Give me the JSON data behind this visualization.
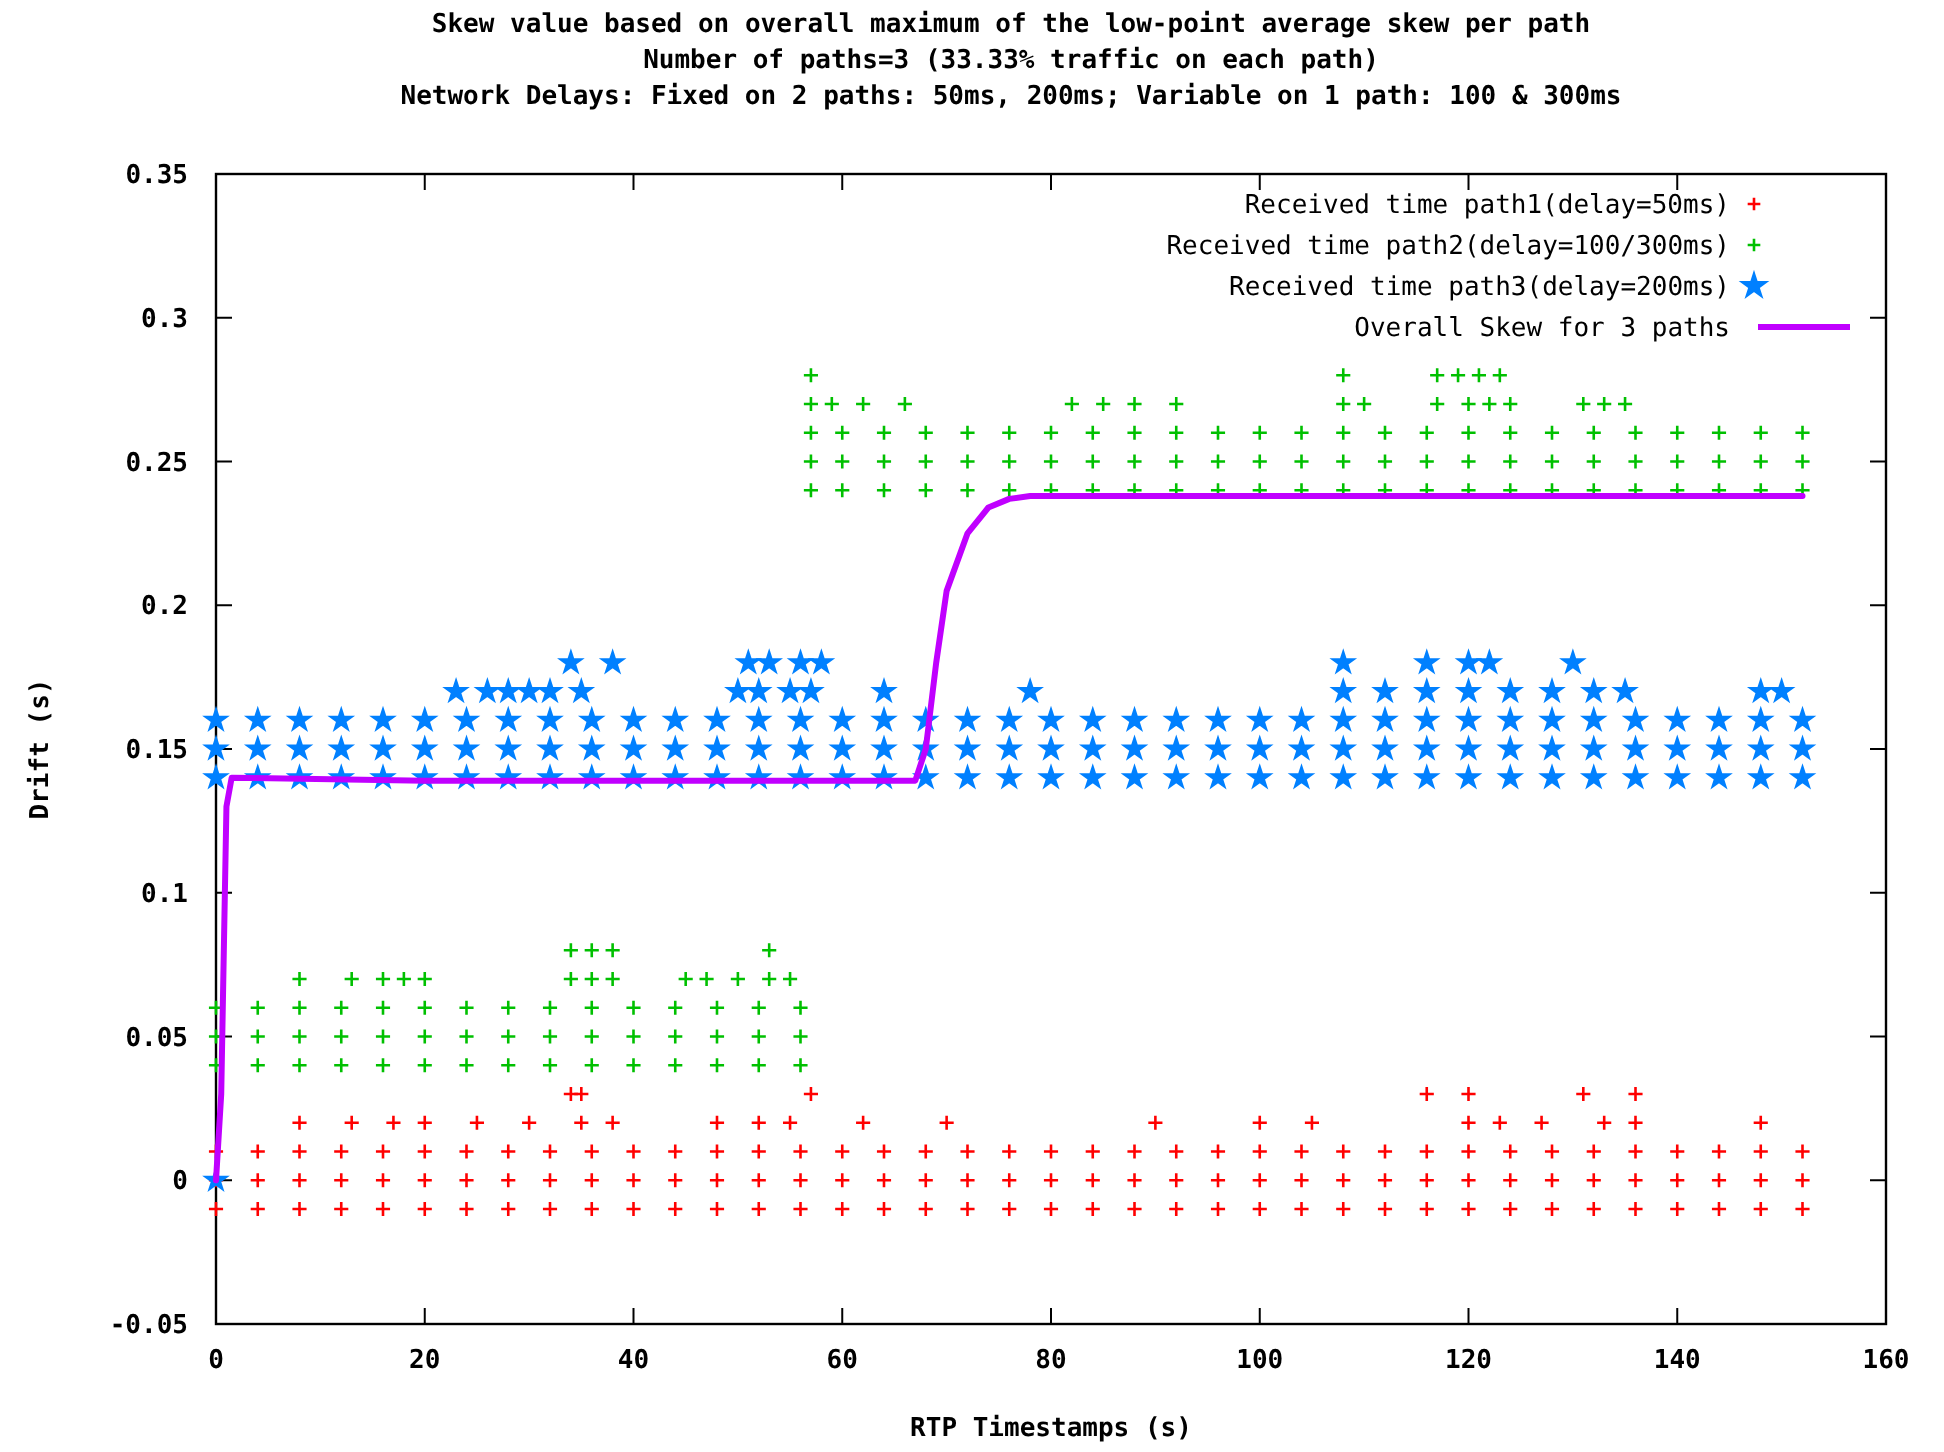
{
  "chart_data": {
    "type": "scatter",
    "title": "Skew value based on overall maximum of the low-point average skew per path",
    "subtitle": "Number of paths=3 (33.33% traffic on each path)\nNetwork Delays: Fixed on 2 paths: 50ms, 200ms; Variable on 1 path: 100 & 300ms",
    "xlabel": "RTP Timestamps (s)",
    "ylabel": "Drift (s)",
    "xlim": [
      0,
      160
    ],
    "ylim": [
      -0.05,
      0.35
    ],
    "xticks": [
      0,
      20,
      40,
      60,
      80,
      100,
      120,
      140,
      160
    ],
    "yticks": [
      -0.05,
      0,
      0.05,
      0.1,
      0.15,
      0.2,
      0.25,
      0.3,
      0.35
    ],
    "grid": false,
    "legend": "top right",
    "series": [
      {
        "name": "Received time path1(delay=50ms)",
        "color": "#ff0000",
        "marker": "cross",
        "x": [
          0,
          4,
          8,
          12,
          16,
          20,
          24,
          28,
          32,
          36,
          40,
          44,
          48,
          52,
          56,
          60,
          64,
          68,
          72,
          76,
          80,
          84,
          88,
          92,
          96,
          100,
          104,
          108,
          112,
          116,
          120,
          124,
          128,
          132,
          136,
          140,
          144,
          148,
          152,
          0,
          4,
          8,
          12,
          16,
          20,
          24,
          28,
          32,
          36,
          40,
          44,
          48,
          52,
          56,
          60,
          64,
          68,
          72,
          76,
          80,
          84,
          88,
          92,
          96,
          100,
          104,
          108,
          112,
          116,
          120,
          124,
          128,
          132,
          136,
          140,
          144,
          148,
          152,
          0,
          4,
          8,
          12,
          16,
          20,
          24,
          28,
          32,
          36,
          40,
          44,
          48,
          52,
          56,
          60,
          64,
          68,
          72,
          76,
          80,
          84,
          88,
          92,
          96,
          100,
          104,
          108,
          112,
          116,
          120,
          124,
          128,
          132,
          136,
          140,
          144,
          148,
          152,
          8,
          13,
          17,
          20,
          25,
          30,
          35,
          38,
          48,
          52,
          55,
          62,
          70,
          90,
          100,
          105,
          120,
          123,
          127,
          133,
          136,
          148,
          34,
          35,
          57,
          116,
          120,
          131,
          136
        ],
        "values": [
          -0.01,
          -0.01,
          -0.01,
          -0.01,
          -0.01,
          -0.01,
          -0.01,
          -0.01,
          -0.01,
          -0.01,
          -0.01,
          -0.01,
          -0.01,
          -0.01,
          -0.01,
          -0.01,
          -0.01,
          -0.01,
          -0.01,
          -0.01,
          -0.01,
          -0.01,
          -0.01,
          -0.01,
          -0.01,
          -0.01,
          -0.01,
          -0.01,
          -0.01,
          -0.01,
          -0.01,
          -0.01,
          -0.01,
          -0.01,
          -0.01,
          -0.01,
          -0.01,
          -0.01,
          -0.01,
          0,
          0,
          0,
          0,
          0,
          0,
          0,
          0,
          0,
          0,
          0,
          0,
          0,
          0,
          0,
          0,
          0,
          0,
          0,
          0,
          0,
          0,
          0,
          0,
          0,
          0,
          0,
          0,
          0,
          0,
          0,
          0,
          0,
          0,
          0,
          0,
          0,
          0,
          0,
          0.01,
          0.01,
          0.01,
          0.01,
          0.01,
          0.01,
          0.01,
          0.01,
          0.01,
          0.01,
          0.01,
          0.01,
          0.01,
          0.01,
          0.01,
          0.01,
          0.01,
          0.01,
          0.01,
          0.01,
          0.01,
          0.01,
          0.01,
          0.01,
          0.01,
          0.01,
          0.01,
          0.01,
          0.01,
          0.01,
          0.01,
          0.01,
          0.01,
          0.01,
          0.01,
          0.01,
          0.01,
          0.01,
          0.01,
          0.02,
          0.02,
          0.02,
          0.02,
          0.02,
          0.02,
          0.02,
          0.02,
          0.02,
          0.02,
          0.02,
          0.02,
          0.02,
          0.02,
          0.02,
          0.02,
          0.02,
          0.02,
          0.02,
          0.02,
          0.02,
          0.02,
          0.03,
          0.03,
          0.03,
          0.03,
          0.03,
          0.03,
          0.03
        ]
      },
      {
        "name": "Received time path2(delay=100/300ms)",
        "color": "#00c000",
        "marker": "cross",
        "x": [
          0,
          4,
          8,
          12,
          16,
          20,
          24,
          28,
          32,
          36,
          40,
          44,
          48,
          52,
          56,
          0,
          4,
          8,
          12,
          16,
          20,
          24,
          28,
          32,
          36,
          40,
          44,
          48,
          52,
          56,
          0,
          4,
          8,
          12,
          16,
          20,
          24,
          28,
          32,
          36,
          40,
          44,
          48,
          52,
          56,
          8,
          13,
          16,
          18,
          20,
          34,
          36,
          38,
          45,
          47,
          50,
          53,
          55,
          34,
          36,
          38,
          53,
          57,
          60,
          64,
          68,
          72,
          76,
          80,
          84,
          88,
          92,
          96,
          100,
          104,
          108,
          112,
          116,
          120,
          124,
          128,
          132,
          136,
          140,
          144,
          148,
          152,
          57,
          60,
          64,
          68,
          72,
          76,
          80,
          84,
          88,
          92,
          96,
          100,
          104,
          108,
          112,
          116,
          120,
          124,
          128,
          132,
          136,
          140,
          144,
          148,
          152,
          57,
          60,
          64,
          68,
          72,
          76,
          80,
          84,
          88,
          92,
          96,
          100,
          104,
          108,
          112,
          116,
          120,
          124,
          128,
          132,
          136,
          140,
          144,
          148,
          152,
          57,
          59,
          62,
          66,
          82,
          85,
          88,
          92,
          108,
          110,
          117,
          120,
          122,
          124,
          131,
          133,
          135,
          57,
          108,
          117,
          119,
          121,
          123
        ],
        "values": [
          0.04,
          0.04,
          0.04,
          0.04,
          0.04,
          0.04,
          0.04,
          0.04,
          0.04,
          0.04,
          0.04,
          0.04,
          0.04,
          0.04,
          0.04,
          0.05,
          0.05,
          0.05,
          0.05,
          0.05,
          0.05,
          0.05,
          0.05,
          0.05,
          0.05,
          0.05,
          0.05,
          0.05,
          0.05,
          0.05,
          0.06,
          0.06,
          0.06,
          0.06,
          0.06,
          0.06,
          0.06,
          0.06,
          0.06,
          0.06,
          0.06,
          0.06,
          0.06,
          0.06,
          0.06,
          0.07,
          0.07,
          0.07,
          0.07,
          0.07,
          0.07,
          0.07,
          0.07,
          0.07,
          0.07,
          0.07,
          0.07,
          0.07,
          0.08,
          0.08,
          0.08,
          0.08,
          0.24,
          0.24,
          0.24,
          0.24,
          0.24,
          0.24,
          0.24,
          0.24,
          0.24,
          0.24,
          0.24,
          0.24,
          0.24,
          0.24,
          0.24,
          0.24,
          0.24,
          0.24,
          0.24,
          0.24,
          0.24,
          0.24,
          0.24,
          0.24,
          0.24,
          0.25,
          0.25,
          0.25,
          0.25,
          0.25,
          0.25,
          0.25,
          0.25,
          0.25,
          0.25,
          0.25,
          0.25,
          0.25,
          0.25,
          0.25,
          0.25,
          0.25,
          0.25,
          0.25,
          0.25,
          0.25,
          0.25,
          0.25,
          0.25,
          0.25,
          0.26,
          0.26,
          0.26,
          0.26,
          0.26,
          0.26,
          0.26,
          0.26,
          0.26,
          0.26,
          0.26,
          0.26,
          0.26,
          0.26,
          0.26,
          0.26,
          0.26,
          0.26,
          0.26,
          0.26,
          0.26,
          0.26,
          0.26,
          0.26,
          0.26,
          0.27,
          0.27,
          0.27,
          0.27,
          0.27,
          0.27,
          0.27,
          0.27,
          0.27,
          0.27,
          0.27,
          0.27,
          0.27,
          0.27,
          0.27,
          0.27,
          0.27,
          0.28,
          0.28,
          0.28,
          0.28,
          0.28,
          0.28
        ]
      },
      {
        "name": "Received time path3(delay=200ms)",
        "color": "#0080ff",
        "marker": "star",
        "x": [
          0,
          4,
          8,
          12,
          16,
          20,
          24,
          28,
          32,
          36,
          40,
          44,
          48,
          52,
          56,
          60,
          64,
          68,
          72,
          76,
          80,
          84,
          88,
          92,
          96,
          100,
          104,
          108,
          112,
          116,
          120,
          124,
          128,
          132,
          136,
          140,
          144,
          148,
          152,
          0,
          4,
          8,
          12,
          16,
          20,
          24,
          28,
          32,
          36,
          40,
          44,
          48,
          52,
          56,
          60,
          64,
          68,
          72,
          76,
          80,
          84,
          88,
          92,
          96,
          100,
          104,
          108,
          112,
          116,
          120,
          124,
          128,
          132,
          136,
          140,
          144,
          148,
          152,
          0,
          4,
          8,
          12,
          16,
          20,
          24,
          28,
          32,
          36,
          40,
          44,
          48,
          52,
          56,
          60,
          64,
          68,
          72,
          76,
          80,
          84,
          88,
          92,
          96,
          100,
          104,
          108,
          112,
          116,
          120,
          124,
          128,
          132,
          136,
          140,
          144,
          148,
          152,
          23,
          26,
          28,
          30,
          32,
          35,
          50,
          52,
          55,
          57,
          64,
          78,
          108,
          112,
          116,
          120,
          124,
          128,
          132,
          135,
          148,
          150,
          34,
          38,
          51,
          53,
          56,
          58,
          108,
          116,
          120,
          122,
          130,
          0
        ],
        "values": [
          0.14,
          0.14,
          0.14,
          0.14,
          0.14,
          0.14,
          0.14,
          0.14,
          0.14,
          0.14,
          0.14,
          0.14,
          0.14,
          0.14,
          0.14,
          0.14,
          0.14,
          0.14,
          0.14,
          0.14,
          0.14,
          0.14,
          0.14,
          0.14,
          0.14,
          0.14,
          0.14,
          0.14,
          0.14,
          0.14,
          0.14,
          0.14,
          0.14,
          0.14,
          0.14,
          0.14,
          0.14,
          0.14,
          0.14,
          0.15,
          0.15,
          0.15,
          0.15,
          0.15,
          0.15,
          0.15,
          0.15,
          0.15,
          0.15,
          0.15,
          0.15,
          0.15,
          0.15,
          0.15,
          0.15,
          0.15,
          0.15,
          0.15,
          0.15,
          0.15,
          0.15,
          0.15,
          0.15,
          0.15,
          0.15,
          0.15,
          0.15,
          0.15,
          0.15,
          0.15,
          0.15,
          0.15,
          0.15,
          0.15,
          0.15,
          0.15,
          0.15,
          0.15,
          0.16,
          0.16,
          0.16,
          0.16,
          0.16,
          0.16,
          0.16,
          0.16,
          0.16,
          0.16,
          0.16,
          0.16,
          0.16,
          0.16,
          0.16,
          0.16,
          0.16,
          0.16,
          0.16,
          0.16,
          0.16,
          0.16,
          0.16,
          0.16,
          0.16,
          0.16,
          0.16,
          0.16,
          0.16,
          0.16,
          0.16,
          0.16,
          0.16,
          0.16,
          0.16,
          0.16,
          0.16,
          0.16,
          0.16,
          0.17,
          0.17,
          0.17,
          0.17,
          0.17,
          0.17,
          0.17,
          0.17,
          0.17,
          0.17,
          0.17,
          0.17,
          0.17,
          0.17,
          0.17,
          0.17,
          0.17,
          0.17,
          0.17,
          0.17,
          0.17,
          0.17,
          0.18,
          0.18,
          0.18,
          0.18,
          0.18,
          0.18,
          0.18,
          0.18,
          0.18,
          0.18,
          0.18,
          0
        ]
      },
      {
        "name": "Overall Skew for 3 paths",
        "type": "line",
        "color": "#c000ff",
        "marker": "none",
        "x": [
          0,
          0.5,
          1,
          1.5,
          20,
          67,
          68,
          69,
          70,
          72,
          74,
          76,
          78,
          152
        ],
        "values": [
          0,
          0.03,
          0.13,
          0.14,
          0.139,
          0.139,
          0.15,
          0.18,
          0.205,
          0.225,
          0.234,
          0.237,
          0.238,
          0.238
        ]
      }
    ]
  }
}
